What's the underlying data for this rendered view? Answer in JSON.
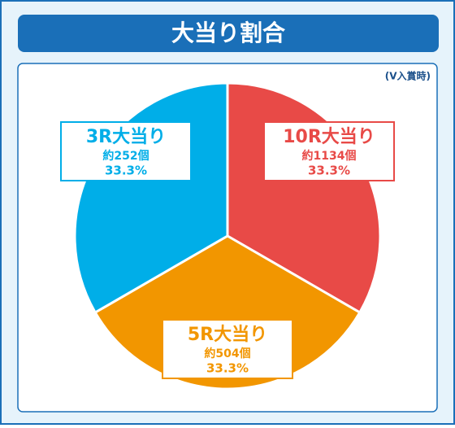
{
  "chart_data": {
    "type": "pie",
    "title": "大当り割合",
    "subtitle": "(V入賞時)",
    "categories": [
      "10R大当り",
      "5R大当り",
      "3R大当り"
    ],
    "counts": [
      "約1134個",
      "約504個",
      "約252個"
    ],
    "values": [
      33.3,
      33.3,
      33.3
    ],
    "value_labels": [
      "33.3%",
      "33.3%",
      "33.3%"
    ],
    "colors": [
      "#e84a47",
      "#f29600",
      "#00aee8"
    ]
  }
}
